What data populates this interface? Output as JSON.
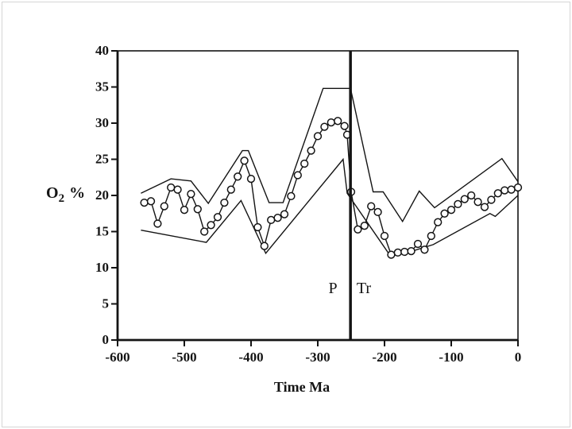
{
  "figure": {
    "background": "#ffffff",
    "ink": "#141414",
    "outer_border_color": "#d6d6d6"
  },
  "chart_data": {
    "type": "line",
    "title": "",
    "xlabel": "Time Ma",
    "ylabel": "O2 %",
    "ylabel_parts": {
      "base": "O",
      "sub": "2",
      "rest": "%"
    },
    "xlim": [
      -600,
      0
    ],
    "ylim": [
      0,
      40
    ],
    "x_ticks": [
      -600,
      -500,
      -400,
      -300,
      -200,
      -100,
      0
    ],
    "y_ticks": [
      0,
      5,
      10,
      15,
      20,
      25,
      30,
      35,
      40
    ],
    "grid": false,
    "legend": "none",
    "annotations": {
      "boundary_line_x": -251,
      "left_label": "P",
      "right_label": "Tr"
    },
    "series": [
      {
        "id": "o2-upper-envelope",
        "name": "upper envelope",
        "marker": "none",
        "x": [
          -565,
          -520,
          -490,
          -464,
          -413,
          -404,
          -373,
          -352,
          -292,
          -251,
          -217,
          -202,
          -173,
          -148,
          -125,
          -24,
          0
        ],
        "y": [
          20.3,
          22.3,
          22.0,
          18.9,
          26.2,
          26.2,
          19.0,
          19.0,
          34.8,
          34.8,
          20.5,
          20.5,
          16.4,
          20.6,
          18.3,
          25.1,
          21.9
        ]
      },
      {
        "id": "o2-lower-envelope",
        "name": "lower envelope",
        "marker": "none",
        "x": [
          -565,
          -467,
          -415,
          -378,
          -262,
          -256,
          -191,
          -155,
          -127,
          -42,
          -34,
          0
        ],
        "y": [
          15.2,
          13.5,
          19.3,
          12.0,
          25.0,
          20.3,
          11.6,
          12.4,
          13.2,
          17.5,
          17.1,
          20.0
        ]
      },
      {
        "id": "o2-central-estimate",
        "name": "O2 central estimate",
        "marker": "circle",
        "x": [
          -560,
          -550,
          -540,
          -530,
          -520,
          -510,
          -500,
          -490,
          -480,
          -470,
          -460,
          -450,
          -440,
          -430,
          -420,
          -410,
          -400,
          -390,
          -380,
          -370,
          -360,
          -350,
          -340,
          -330,
          -320,
          -310,
          -300,
          -290,
          -280,
          -270,
          -260,
          -256,
          -250,
          -240,
          -230,
          -220,
          -210,
          -200,
          -190,
          -180,
          -170,
          -160,
          -150,
          -140,
          -130,
          -120,
          -110,
          -100,
          -90,
          -80,
          -70,
          -60,
          -50,
          -40,
          -30,
          -20,
          -10,
          0
        ],
        "y": [
          19.0,
          19.2,
          16.1,
          18.5,
          21.1,
          20.8,
          18.0,
          20.2,
          18.1,
          15.0,
          15.9,
          17.0,
          19.0,
          20.8,
          22.6,
          24.8,
          22.3,
          15.6,
          13.0,
          16.6,
          16.9,
          17.4,
          19.9,
          22.8,
          24.4,
          26.2,
          28.2,
          29.5,
          30.1,
          30.3,
          29.6,
          28.4,
          20.5,
          15.3,
          15.8,
          18.5,
          17.7,
          14.4,
          11.8,
          12.1,
          12.2,
          12.3,
          13.3,
          12.5,
          14.4,
          16.3,
          17.5,
          18.0,
          18.8,
          19.5,
          20.0,
          19.1,
          18.4,
          19.4,
          20.3,
          20.7,
          20.8,
          21.1
        ]
      }
    ]
  }
}
